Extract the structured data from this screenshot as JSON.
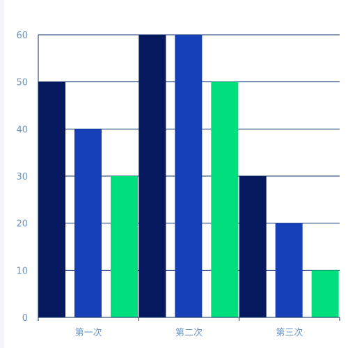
{
  "colors": {
    "background": "#ffffff",
    "left_strip": "#f3f4f8",
    "grid": "#0b2f6b",
    "axis": "#0b2f6b",
    "tick_text": "#6a95c5",
    "series": [
      "#06195e",
      "#1640b7",
      "#00df7e"
    ]
  },
  "chart_data": {
    "type": "bar",
    "categories": [
      "第一次",
      "第二次",
      "第三次"
    ],
    "series": [
      {
        "values": [
          50,
          60,
          30
        ]
      },
      {
        "values": [
          40,
          60,
          20
        ]
      },
      {
        "values": [
          30,
          50,
          10
        ]
      }
    ],
    "ylim": [
      0,
      60
    ],
    "yticks": [
      0,
      10,
      20,
      30,
      40,
      50,
      60
    ],
    "grid": true,
    "legend": "none"
  }
}
